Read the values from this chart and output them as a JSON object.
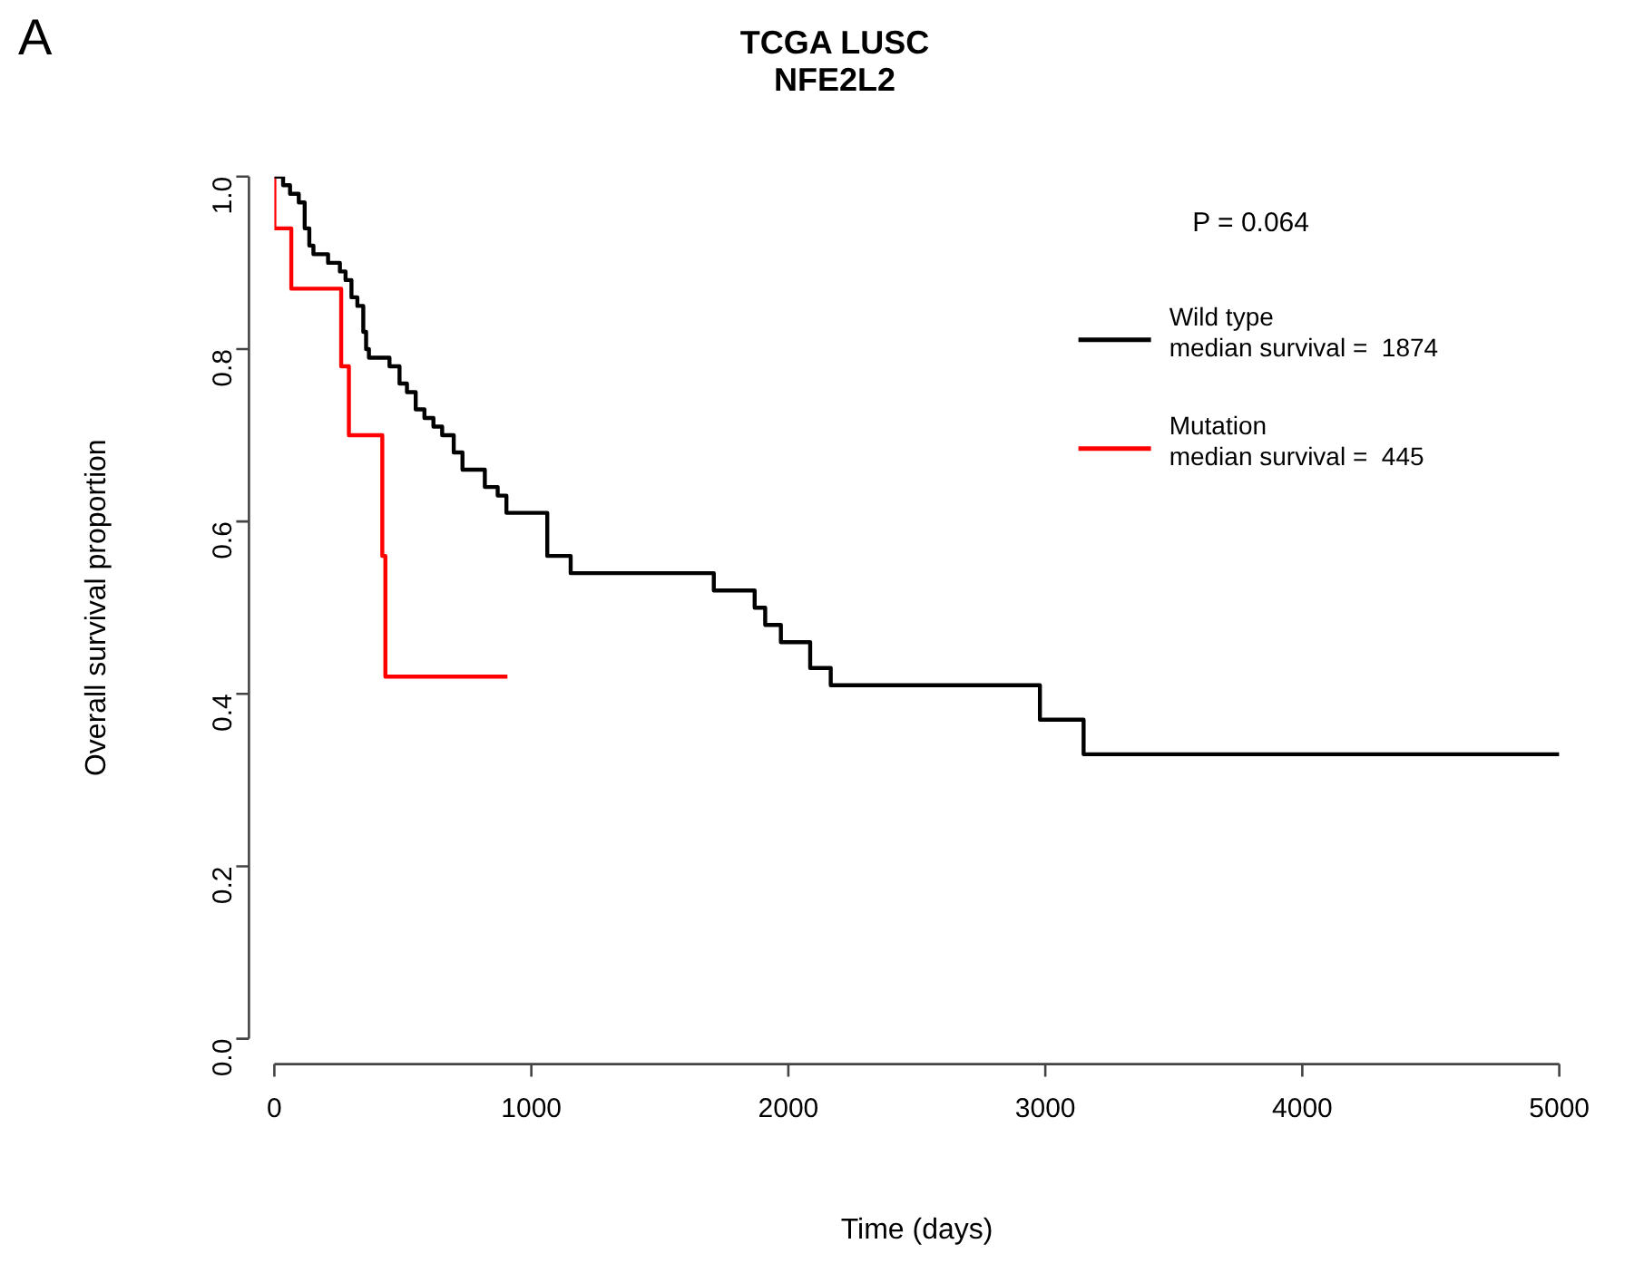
{
  "chart_data": {
    "type": "step",
    "title": "TCGA LUSC\nNFE2L2",
    "xlabel": "Time (days)",
    "ylabel": "Overall survival proportion",
    "xlim": [
      0,
      5000
    ],
    "xticks": [
      0,
      1000,
      2000,
      3000,
      4000,
      5000
    ],
    "ylim": [
      0,
      1
    ],
    "yticks": [
      {
        "value": 0,
        "label": "0.0"
      },
      0.2,
      0.4,
      0.6,
      0.8,
      {
        "value": 1,
        "label": "1.0"
      }
    ],
    "grid": false,
    "legend": "top right",
    "marker": "none",
    "line_style": "solid",
    "annotations": [
      "A",
      "P = 0.064"
    ],
    "series": [
      {
        "name": "Wild type\nmedian survival =  1874",
        "color": "#000000",
        "x": [
          0,
          34,
          61,
          95,
          118,
          136,
          152,
          175,
          209,
          255,
          277,
          300,
          323,
          346,
          357,
          368,
          414,
          448,
          487,
          516,
          550,
          584,
          619,
          653,
          698,
          732,
          819,
          869,
          903,
          1062,
          1153,
          1710,
          1869,
          1910,
          1971,
          2085,
          2165,
          2979,
          3149,
          5000
        ],
        "values": [
          1.0,
          0.99,
          0.98,
          0.97,
          0.94,
          0.92,
          0.91,
          0.91,
          0.9,
          0.89,
          0.88,
          0.86,
          0.85,
          0.82,
          0.8,
          0.79,
          0.79,
          0.78,
          0.76,
          0.75,
          0.73,
          0.72,
          0.71,
          0.7,
          0.68,
          0.66,
          0.64,
          0.63,
          0.61,
          0.56,
          0.54,
          0.52,
          0.5,
          0.48,
          0.46,
          0.43,
          0.41,
          0.37,
          0.33,
          0.33
        ]
      },
      {
        "name": "Mutation\nmedian survival =  445",
        "color": "#ff0000",
        "x": [
          0,
          0,
          66,
          260,
          290,
          420,
          432,
          907
        ],
        "values": [
          1.0,
          0.94,
          0.87,
          0.78,
          0.7,
          0.56,
          0.42,
          0.42
        ]
      }
    ]
  }
}
